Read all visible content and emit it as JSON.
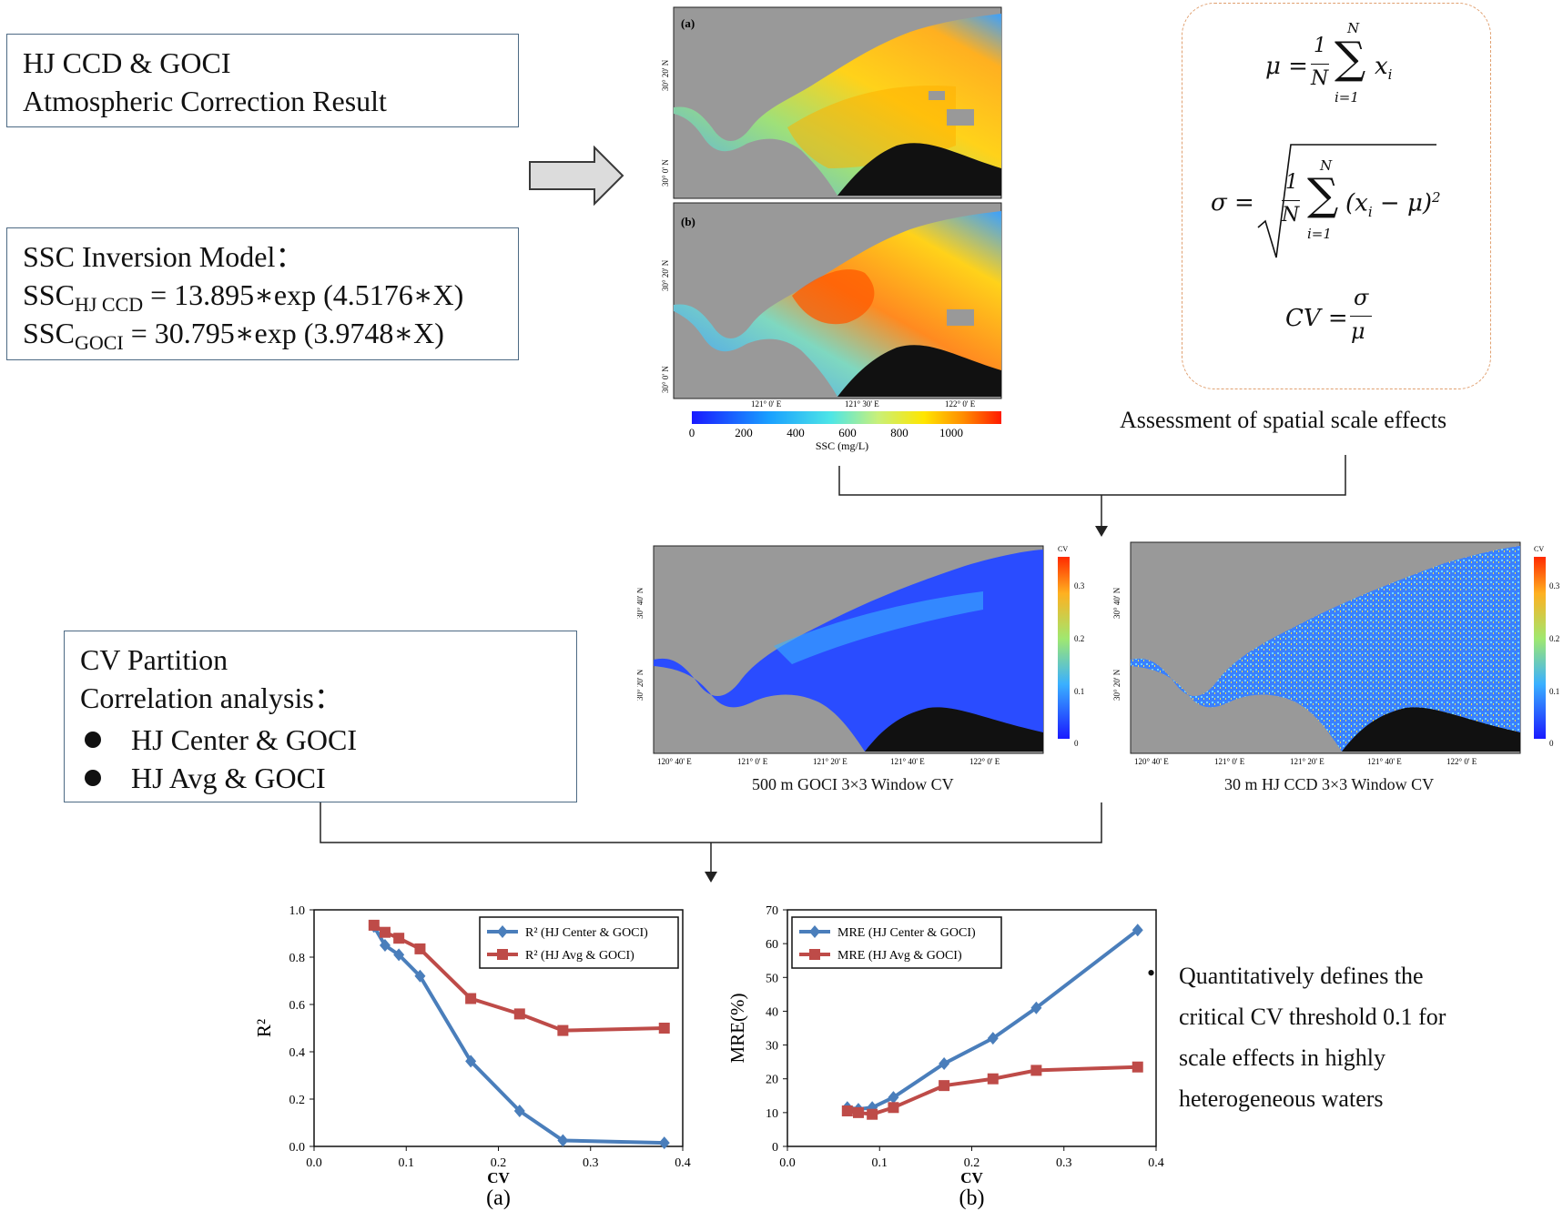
{
  "box1": {
    "line1": "HJ CCD & GOCI",
    "line2": "Atmospheric Correction Result"
  },
  "box2": {
    "line1": "SSC Inversion Model：",
    "ssc": "SSC",
    "sub_hj": "HJ CCD",
    "eq_hj": " = 13.895∗exp (4.5176∗X)",
    "sub_goci": "GOCI",
    "eq_goci": " = 30.795∗exp (3.9748∗X)"
  },
  "box3": {
    "line1": "CV Partition",
    "line2": "Correlation analysis：",
    "bullets": [
      "HJ Center & GOCI",
      "HJ Avg & GOCI"
    ]
  },
  "maps": {
    "a_label": "(a)",
    "b_label": "(b)",
    "lat_top": [
      "30° 20' N",
      "30° 0' N"
    ],
    "lat_bottom": [
      "30° 20' N",
      "30° 0' N"
    ],
    "lon": [
      "121° 0' E",
      "121° 30' E",
      "122° 0' E"
    ],
    "ssc_ticks": [
      "0",
      "200",
      "400",
      "600",
      "800",
      "1000"
    ],
    "ssc_label": "SSC (mg/L)"
  },
  "formulas": {
    "mu": "μ =",
    "sigma": "σ =",
    "cv": "CV =",
    "N": "N",
    "one": "1",
    "i1": "i=1",
    "xi": "x",
    "sub_i": "i",
    "sq": "(x",
    "sq2": " − μ)",
    "two": "2",
    "frac_top": "σ",
    "frac_bot": "μ",
    "caption": "Assessment of spatial scale effects"
  },
  "cv_maps": {
    "left_caption": "500 m GOCI 3×3 Window CV",
    "right_caption": "30 m HJ CCD 3×3 Window CV",
    "cb_title": "CV",
    "cb_ticks": [
      "0.3",
      "0.2",
      "0.1",
      "0"
    ],
    "lat": [
      "30° 40' N",
      "30° 20' N"
    ],
    "lon": [
      "120° 40' E",
      "121° 0' E",
      "121° 20' E",
      "121° 40' E",
      "122° 0' E"
    ]
  },
  "note": {
    "bullet": "•",
    "lines": [
      "Quantitatively defines the",
      "critical CV threshold 0.1 for",
      "scale effects in highly",
      "heterogeneous waters"
    ]
  },
  "chart_data": [
    {
      "type": "line",
      "panel_label": "(a)",
      "xlabel": "CV",
      "ylabel": "R²",
      "xlim": [
        0.0,
        0.4
      ],
      "ylim": [
        0.0,
        1.0
      ],
      "xticks": [
        "0.0",
        "0.1",
        "0.2",
        "0.3",
        "0.4"
      ],
      "yticks": [
        "0.0",
        "0.2",
        "0.4",
        "0.6",
        "0.8",
        "1.0"
      ],
      "legend_position": "top-right",
      "series": [
        {
          "name": "R² (HJ Center & GOCI)",
          "color": "#4a7ebb",
          "marker": "diamond",
          "x": [
            0.065,
            0.077,
            0.092,
            0.115,
            0.17,
            0.223,
            0.27,
            0.38
          ],
          "y": [
            0.93,
            0.85,
            0.81,
            0.72,
            0.36,
            0.15,
            0.025,
            0.015
          ]
        },
        {
          "name": "R² (HJ Avg & GOCI)",
          "color": "#be4b48",
          "marker": "square",
          "x": [
            0.065,
            0.077,
            0.092,
            0.115,
            0.17,
            0.223,
            0.27,
            0.38
          ],
          "y": [
            0.935,
            0.905,
            0.88,
            0.835,
            0.625,
            0.56,
            0.49,
            0.5
          ]
        }
      ]
    },
    {
      "type": "line",
      "panel_label": "(b)",
      "xlabel": "CV",
      "ylabel": "MRE(%)",
      "xlim": [
        0.0,
        0.4
      ],
      "ylim": [
        0,
        70
      ],
      "xticks": [
        "0.0",
        "0.1",
        "0.2",
        "0.3",
        "0.4"
      ],
      "yticks": [
        "0",
        "10",
        "20",
        "30",
        "40",
        "50",
        "60",
        "70"
      ],
      "legend_position": "top-left",
      "series": [
        {
          "name": "MRE (HJ Center & GOCI)",
          "color": "#4a7ebb",
          "marker": "diamond",
          "x": [
            0.065,
            0.077,
            0.092,
            0.115,
            0.17,
            0.223,
            0.27,
            0.38
          ],
          "y": [
            11.5,
            11.0,
            11.5,
            14.5,
            24.5,
            32.0,
            41.0,
            64.0
          ]
        },
        {
          "name": "MRE (HJ Avg & GOCI)",
          "color": "#be4b48",
          "marker": "square",
          "x": [
            0.065,
            0.077,
            0.092,
            0.115,
            0.17,
            0.223,
            0.27,
            0.38
          ],
          "y": [
            10.5,
            10.0,
            9.5,
            11.5,
            18.0,
            20.0,
            22.5,
            23.5
          ]
        }
      ]
    }
  ]
}
